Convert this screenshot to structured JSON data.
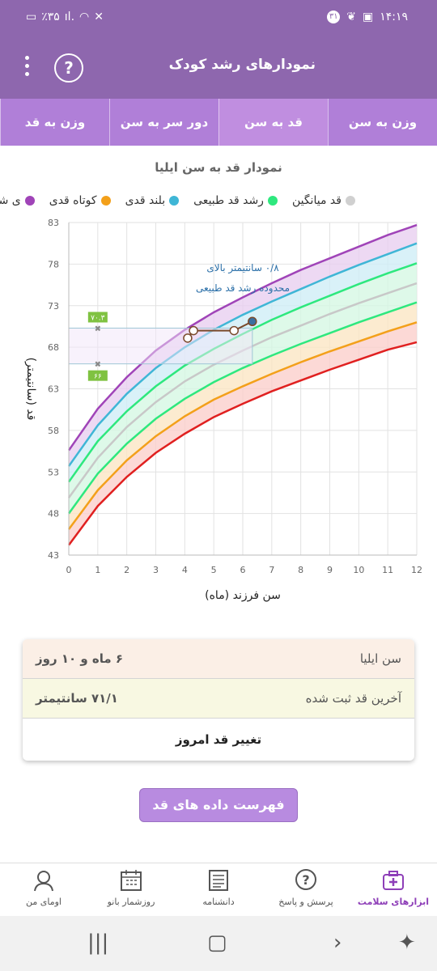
{
  "status": {
    "time": "۱۴:۱۹",
    "battery": "٪۳۵",
    "notif_count": "۳۱"
  },
  "app": {
    "title": "نمودارهای رشد کودک",
    "help_label": "?"
  },
  "tabs": [
    {
      "label": "وزن به سن"
    },
    {
      "label": "قد به سن"
    },
    {
      "label": "دور سر به سن"
    },
    {
      "label": "وزن به قد"
    }
  ],
  "chart_title": "نمودار قد به سن ایلیا",
  "legend": [
    {
      "label": "قد میانگین",
      "color": "#d0d0d0"
    },
    {
      "label": "رشد قد طبیعی",
      "color": "#2ee87e"
    },
    {
      "label": "بلند قدی",
      "color": "#3fb6d6"
    },
    {
      "label": "کوتاه قدی",
      "color": "#f3a01a"
    },
    {
      "label": "ی شدید",
      "color": "#a044b8"
    }
  ],
  "chart_data": {
    "type": "line",
    "xlabel": "سن فرزند (ماه)",
    "ylabel": "قد (سانتیمتر)",
    "xlim": [
      0,
      12
    ],
    "ylim": [
      43,
      83
    ],
    "xticks": [
      0,
      1,
      2,
      3,
      4,
      5,
      6,
      7,
      8,
      9,
      10,
      11,
      12
    ],
    "yticks": [
      43,
      48,
      53,
      58,
      63,
      68,
      73,
      78,
      83
    ],
    "x": [
      0,
      1,
      2,
      3,
      4,
      5,
      6,
      7,
      8,
      9,
      10,
      11,
      12
    ],
    "series": [
      {
        "color": "#a044b8",
        "values": [
          55.6,
          60.6,
          64.4,
          67.6,
          70.1,
          72.2,
          74.0,
          75.7,
          77.3,
          78.7,
          80.1,
          81.5,
          82.7
        ]
      },
      {
        "color": "#3fb6d6",
        "values": [
          53.7,
          58.6,
          62.4,
          65.5,
          68.0,
          70.1,
          71.9,
          73.5,
          75.0,
          76.5,
          77.9,
          79.2,
          80.5
        ]
      },
      {
        "color": "#2ee87e",
        "values": [
          51.8,
          56.7,
          60.3,
          63.3,
          65.8,
          67.8,
          69.6,
          71.3,
          72.8,
          74.2,
          75.6,
          76.9,
          78.1
        ]
      },
      {
        "color": "#c8c8c8",
        "values": [
          49.9,
          54.7,
          58.4,
          61.4,
          63.9,
          65.9,
          67.6,
          69.2,
          70.6,
          72.0,
          73.3,
          74.5,
          75.7
        ]
      },
      {
        "color": "#2ee87e",
        "values": [
          48.0,
          52.8,
          56.4,
          59.4,
          61.8,
          63.8,
          65.5,
          67.0,
          68.4,
          69.7,
          71.0,
          72.2,
          73.4
        ]
      },
      {
        "color": "#f3a01a",
        "values": [
          46.1,
          50.8,
          54.4,
          57.3,
          59.7,
          61.7,
          63.3,
          64.8,
          66.2,
          67.5,
          68.7,
          69.9,
          71.0
        ]
      },
      {
        "color": "#e02020",
        "values": [
          44.2,
          48.9,
          52.4,
          55.3,
          57.6,
          59.6,
          61.2,
          62.7,
          64.0,
          65.3,
          66.5,
          67.7,
          68.6
        ]
      }
    ],
    "child_points": [
      {
        "x": 4.1,
        "y": 69.1
      },
      {
        "x": 4.3,
        "y": 70.0
      },
      {
        "x": 5.7,
        "y": 70.0
      },
      {
        "x": 6.33,
        "y": 71.1
      }
    ],
    "markers": [
      {
        "x": 1,
        "y": 70.3,
        "label": "۷۰.۳"
      },
      {
        "x": 1,
        "y": 66.0,
        "label": "۶۶"
      }
    ],
    "annotation_line1": "۰/۸ سانتیمتر بالای",
    "annotation_line2": "محدوده رشد قد طبیعی"
  },
  "summary": {
    "age_label": "سن ایلیا",
    "age_value": "۶ ماه و ۱۰ روز",
    "height_label": "آخرین قد ثبت شده",
    "height_value": "۷۱/۱ سانتیمتر",
    "action_label": "تغییر قد امروز"
  },
  "list_button": "فهرست داده های قد ایلیا",
  "bottom_nav": [
    {
      "label": "ابزارهای سلامت",
      "icon": "medical-kit-icon"
    },
    {
      "label": "پرسش و پاسخ",
      "icon": "question-bubble-icon"
    },
    {
      "label": "دانشنامه",
      "icon": "newspaper-icon"
    },
    {
      "label": "روزشمار بانو",
      "icon": "calendar-icon"
    },
    {
      "label": "اومای من",
      "icon": "woman-avatar-icon"
    }
  ]
}
